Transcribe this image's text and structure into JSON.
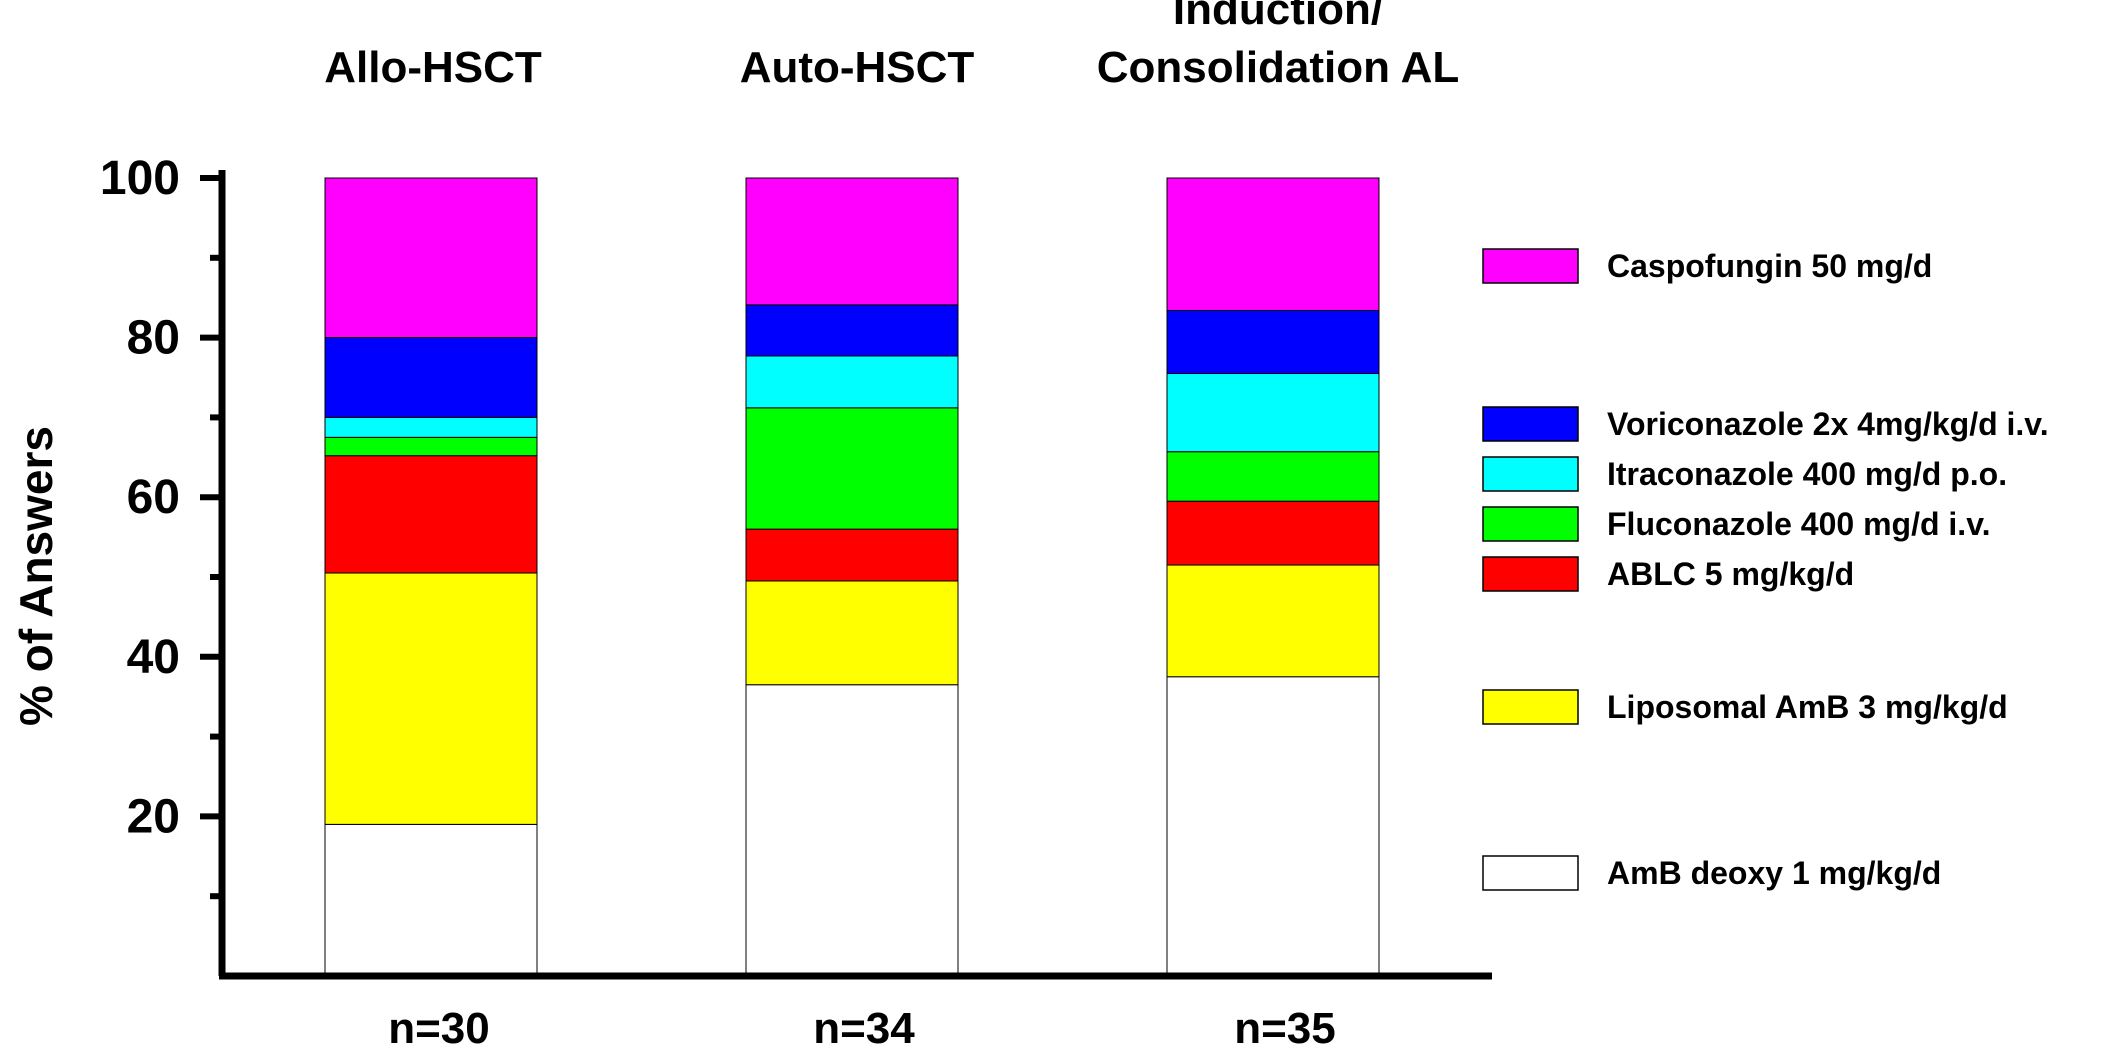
{
  "chart_data": {
    "type": "bar",
    "stacked": true,
    "ylabel": "% of Answers",
    "ylim": [
      0,
      100
    ],
    "yticks": [
      "20",
      "40",
      "60",
      "80",
      "100"
    ],
    "categories": [
      {
        "title_lines": [
          "Allo-HSCT"
        ],
        "n_label": "n=30"
      },
      {
        "title_lines": [
          "Auto-HSCT"
        ],
        "n_label": "n=34"
      },
      {
        "title_lines": [
          "Induction/",
          "Consolidation AL"
        ],
        "n_label": "n=35"
      }
    ],
    "series": [
      {
        "name": "AmB deoxy 1 mg/kg/d",
        "color": "#ffffff",
        "values": [
          19,
          36.5,
          37.5
        ]
      },
      {
        "name": "Liposomal AmB 3 mg/kg/d",
        "color": "#ffff00",
        "values": [
          31.5,
          13,
          14
        ]
      },
      {
        "name": "ABLC 5 mg/kg/d",
        "color": "#ff0000",
        "values": [
          14.7,
          6.5,
          8
        ]
      },
      {
        "name": "Fluconazole 400 mg/d i.v.",
        "color": "#00ff00",
        "values": [
          2.3,
          15.2,
          6.2
        ]
      },
      {
        "name": "Itraconazole 400 mg/d p.o.",
        "color": "#00ffff",
        "values": [
          2.5,
          6.5,
          9.8
        ]
      },
      {
        "name": "Voriconazole 2x 4mg/kg/d i.v.",
        "color": "#0000ff",
        "values": [
          10,
          6.4,
          7.9
        ]
      },
      {
        "name": "Caspofungin 50 mg/d",
        "color": "#ff00ff",
        "values": [
          20,
          15.9,
          16.6
        ]
      }
    ],
    "legend_order": [
      6,
      5,
      4,
      3,
      2,
      1,
      0
    ],
    "legend_position": "right"
  }
}
